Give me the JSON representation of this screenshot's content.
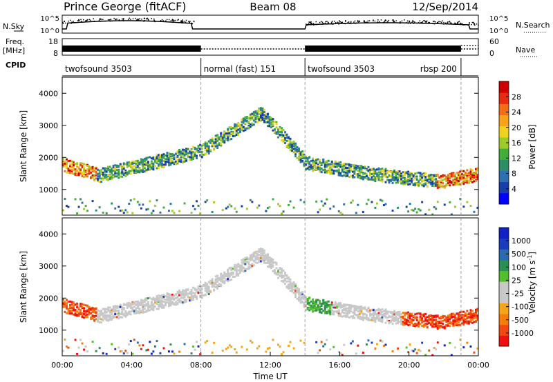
{
  "header": {
    "station": "Prince George (fitACF)",
    "beam": "Beam 08",
    "date": "12/Sep/2014"
  },
  "chart_data": [
    {
      "type": "line",
      "panel": "noise",
      "labels_left": [
        "N.Sky"
      ],
      "labels_right": [
        "N.Search"
      ],
      "y_ticks_left": [
        "10^5",
        "10^0"
      ],
      "y_ticks_right": [
        "10^5",
        "10^0"
      ]
    },
    {
      "type": "line",
      "panel": "frequency-nave",
      "labels_left": [
        "Freq.",
        "[MHz]"
      ],
      "labels_right": [
        "Nave"
      ],
      "y_ticks_left": [
        "18",
        "8"
      ],
      "y_ticks_right": [
        "60",
        "0"
      ],
      "frequency_segments": [
        {
          "start": 0,
          "end": 8,
          "style": "solid"
        },
        {
          "start": 8,
          "end": 14,
          "style": "dotted"
        },
        {
          "start": 14,
          "end": 23,
          "style": "solid"
        },
        {
          "start": 23,
          "end": 24,
          "style": "dotted"
        }
      ]
    },
    {
      "type": "table",
      "panel": "cpid",
      "label": "CPID",
      "modes": [
        {
          "start": 0,
          "end": 8,
          "label": "twofsound 3503",
          "align": "left"
        },
        {
          "start": 8,
          "end": 14,
          "label": "normal (fast) 151",
          "align": "left"
        },
        {
          "start": 14,
          "end": 23,
          "label": "twofsound 3503",
          "align": "left"
        },
        {
          "start": 14,
          "end": 23,
          "label": "rbsp 200",
          "align": "right"
        }
      ]
    },
    {
      "type": "heatmap",
      "panel": "power",
      "ylabel": "Slant Range [km]",
      "xlim": [
        0,
        24
      ],
      "ylim": [
        200,
        4500
      ],
      "y_ticks": [
        "1000",
        "2000",
        "3000",
        "4000"
      ],
      "colorbar": {
        "label": "Power [dB]",
        "ticks": [
          "28",
          "24",
          "20",
          "16",
          "12",
          "8",
          "4"
        ],
        "colors": [
          "#0000ff",
          "#1a3ea8",
          "#2e6fb0",
          "#2f8d66",
          "#44ad3a",
          "#9ecb2a",
          "#f0d31e",
          "#f7a21a",
          "#f26d14",
          "#e82a10",
          "#d00000"
        ]
      }
    },
    {
      "type": "heatmap",
      "panel": "velocity",
      "ylabel": "Slant Range [km]",
      "xlabel": "Time UT",
      "xlim": [
        0,
        24
      ],
      "ylim": [
        200,
        4500
      ],
      "y_ticks": [
        "1000",
        "2000",
        "3000",
        "4000"
      ],
      "x_ticks": [
        "00:00",
        "04:00",
        "08:00",
        "12:00",
        "16:00",
        "20:00",
        "00:00"
      ],
      "colorbar": {
        "label": "Velocity [m s",
        "label_sup": "-1",
        "label_end": "]",
        "ticks": [
          "1000",
          "500",
          "100",
          "25",
          "-25",
          "-100",
          "-500",
          "-1000"
        ],
        "colors": [
          "#ee1010",
          "#f0480e",
          "#f47d0c",
          "#f5a516",
          "#c8c8c8",
          "#c8c8c8",
          "#52bf2a",
          "#2b8f52",
          "#2a6aae",
          "#1a3dc0",
          "#1220c8"
        ]
      }
    }
  ]
}
